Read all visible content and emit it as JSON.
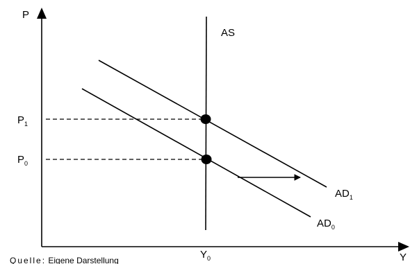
{
  "axes": {
    "y_label": "P",
    "x_label": "Y"
  },
  "curves": {
    "as_label": "AS",
    "ad1_label": "AD",
    "ad1_sub": "1",
    "ad0_label": "AD",
    "ad0_sub": "0"
  },
  "price_levels": {
    "p1_label": "P",
    "p1_sub": "1",
    "p0_label": "P",
    "p0_sub": "0"
  },
  "output": {
    "y0_label": "Y",
    "y0_sub": "0"
  },
  "source": {
    "prefix": "Quelle:",
    "text": " Eigene Darstellung"
  }
}
